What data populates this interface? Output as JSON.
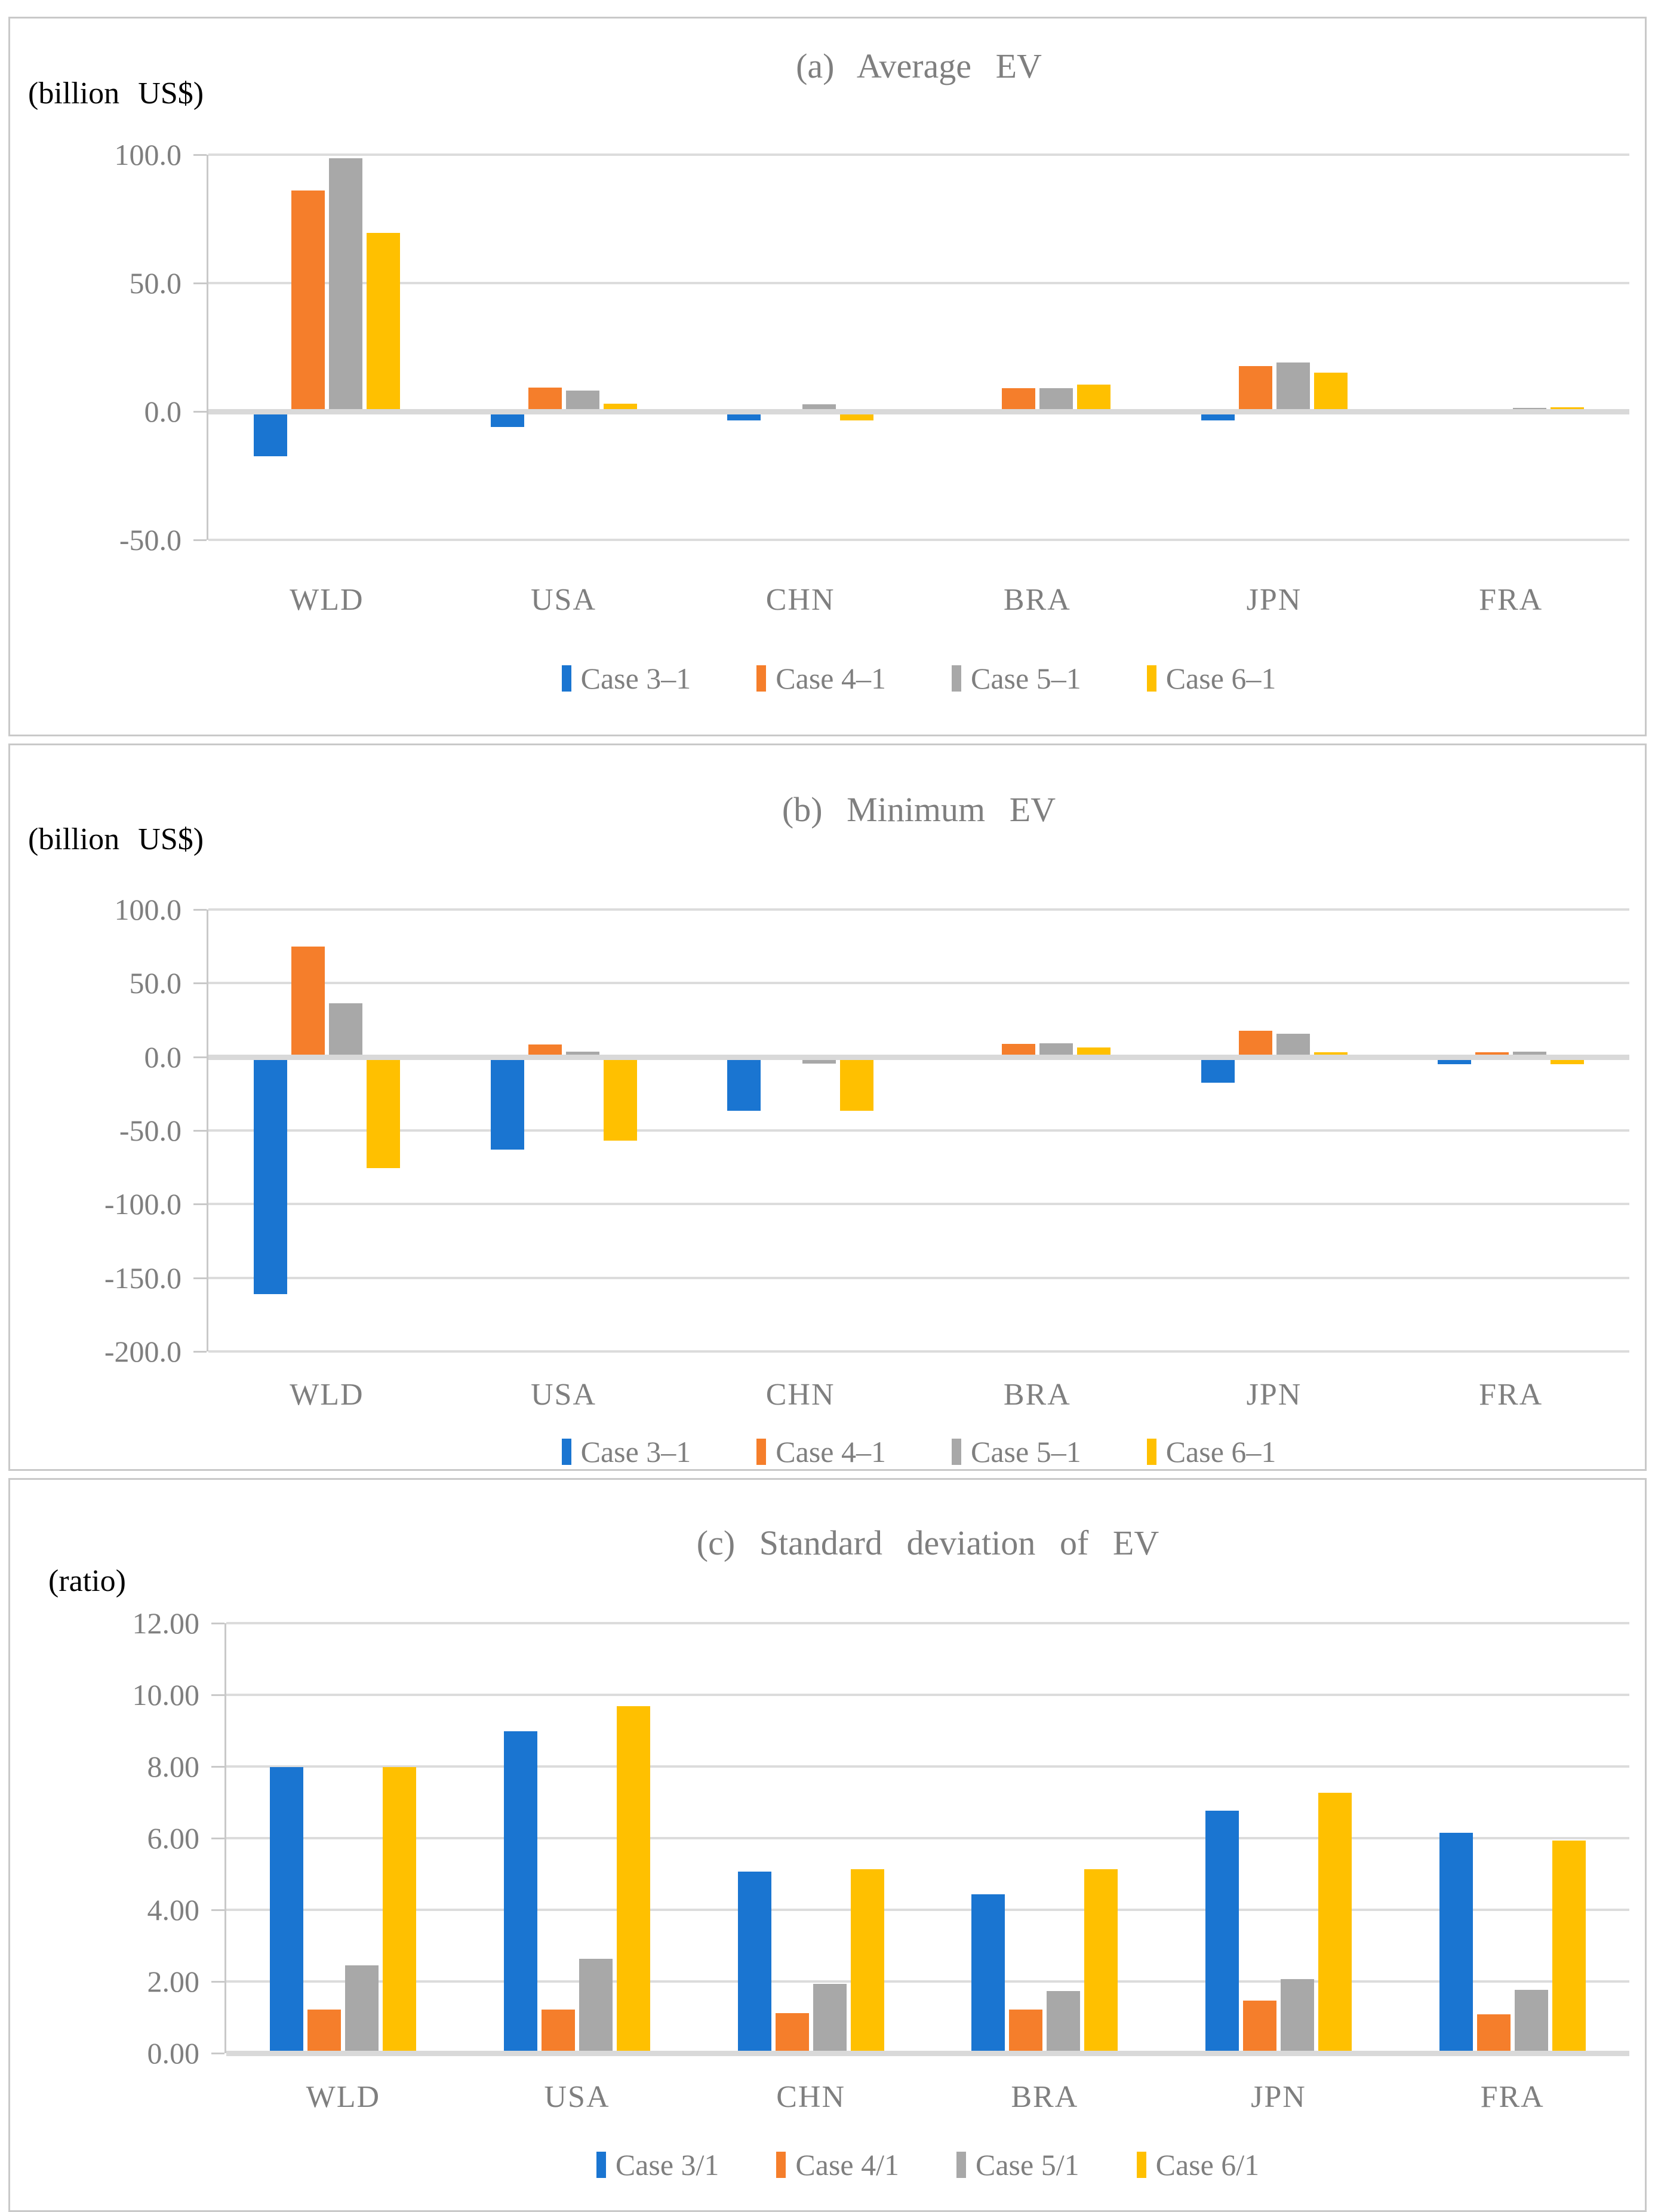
{
  "palette": {
    "case3": "#1a75d1",
    "case4": "#f57e2b",
    "case5": "#a8a8a8",
    "case6": "#ffc000",
    "gridline": "#dcdcdc",
    "axis_text": "#7f7f7f",
    "title_text": "#7f7f7f",
    "unit_text": "#000000"
  },
  "chart_data": [
    {
      "type": "bar",
      "panel": "a",
      "title": "(a) Average EV",
      "unit_label": "(billion US$)",
      "categories": [
        "WLD",
        "USA",
        "CHN",
        "BRA",
        "JPN",
        "FRA"
      ],
      "series": [
        {
          "name": "Case 3–1",
          "color_key": "case3",
          "values": [
            -17.5,
            -6.0,
            -3.5,
            0.3,
            -3.5,
            -0.3
          ]
        },
        {
          "name": "Case 4–1",
          "color_key": "case4",
          "values": [
            86.0,
            9.2,
            0.3,
            9.1,
            17.7,
            0.4
          ]
        },
        {
          "name": "Case 5–1",
          "color_key": "case5",
          "values": [
            98.5,
            8.2,
            2.9,
            9.0,
            19.0,
            1.5
          ]
        },
        {
          "name": "Case 6–1",
          "color_key": "case6",
          "values": [
            69.5,
            3.0,
            -3.5,
            10.5,
            15.2,
            1.6
          ]
        }
      ],
      "ylim": [
        -50,
        100
      ],
      "ytick_step": 50,
      "ytick_labels": [
        "100.0",
        "50.0",
        "0.0",
        "-50.0"
      ],
      "grid": true,
      "legend_position": "bottom"
    },
    {
      "type": "bar",
      "panel": "b",
      "title": "(b) Minimum EV",
      "unit_label": "(billion US$)",
      "categories": [
        "WLD",
        "USA",
        "CHN",
        "BRA",
        "JPN",
        "FRA"
      ],
      "series": [
        {
          "name": "Case 3–1",
          "color_key": "case3",
          "values": [
            -161.0,
            -62.8,
            -36.6,
            0.4,
            -17.4,
            -4.9
          ]
        },
        {
          "name": "Case 4–1",
          "color_key": "case4",
          "values": [
            74.7,
            8.2,
            0.5,
            8.6,
            17.7,
            3.1
          ]
        },
        {
          "name": "Case 5–1",
          "color_key": "case5",
          "values": [
            36.4,
            3.7,
            -4.6,
            9.0,
            15.6,
            3.4
          ]
        },
        {
          "name": "Case 6–1",
          "color_key": "case6",
          "values": [
            -75.6,
            -56.8,
            -36.6,
            6.2,
            3.1,
            -4.9
          ]
        }
      ],
      "ylim": [
        -200,
        100
      ],
      "ytick_step": 50,
      "ytick_labels": [
        "100.0",
        "50.0",
        "0.0",
        "-50.0",
        "-100.0",
        "-150.0",
        "-200.0"
      ],
      "grid": true,
      "legend_position": "bottom"
    },
    {
      "type": "bar",
      "panel": "c",
      "title": "(c) Standard deviation of EV",
      "unit_label": "(ratio)",
      "categories": [
        "WLD",
        "USA",
        "CHN",
        "BRA",
        "JPN",
        "FRA"
      ],
      "series": [
        {
          "name": "Case 3/1",
          "color_key": "case3",
          "values": [
            7.98,
            8.99,
            5.06,
            4.44,
            6.76,
            6.15
          ]
        },
        {
          "name": "Case 4/1",
          "color_key": "case4",
          "values": [
            1.22,
            1.22,
            1.11,
            1.21,
            1.46,
            1.08
          ]
        },
        {
          "name": "Case 5/1",
          "color_key": "case5",
          "values": [
            2.45,
            2.64,
            1.93,
            1.73,
            2.06,
            1.76
          ]
        },
        {
          "name": "Case 6/1",
          "color_key": "case6",
          "values": [
            7.98,
            9.68,
            5.14,
            5.14,
            7.26,
            5.93
          ]
        }
      ],
      "ylim": [
        0,
        12
      ],
      "ytick_step": 2,
      "ytick_labels": [
        "12.00",
        "10.00",
        "8.00",
        "6.00",
        "4.00",
        "2.00",
        "0.00"
      ],
      "grid": true,
      "legend_position": "bottom"
    }
  ]
}
